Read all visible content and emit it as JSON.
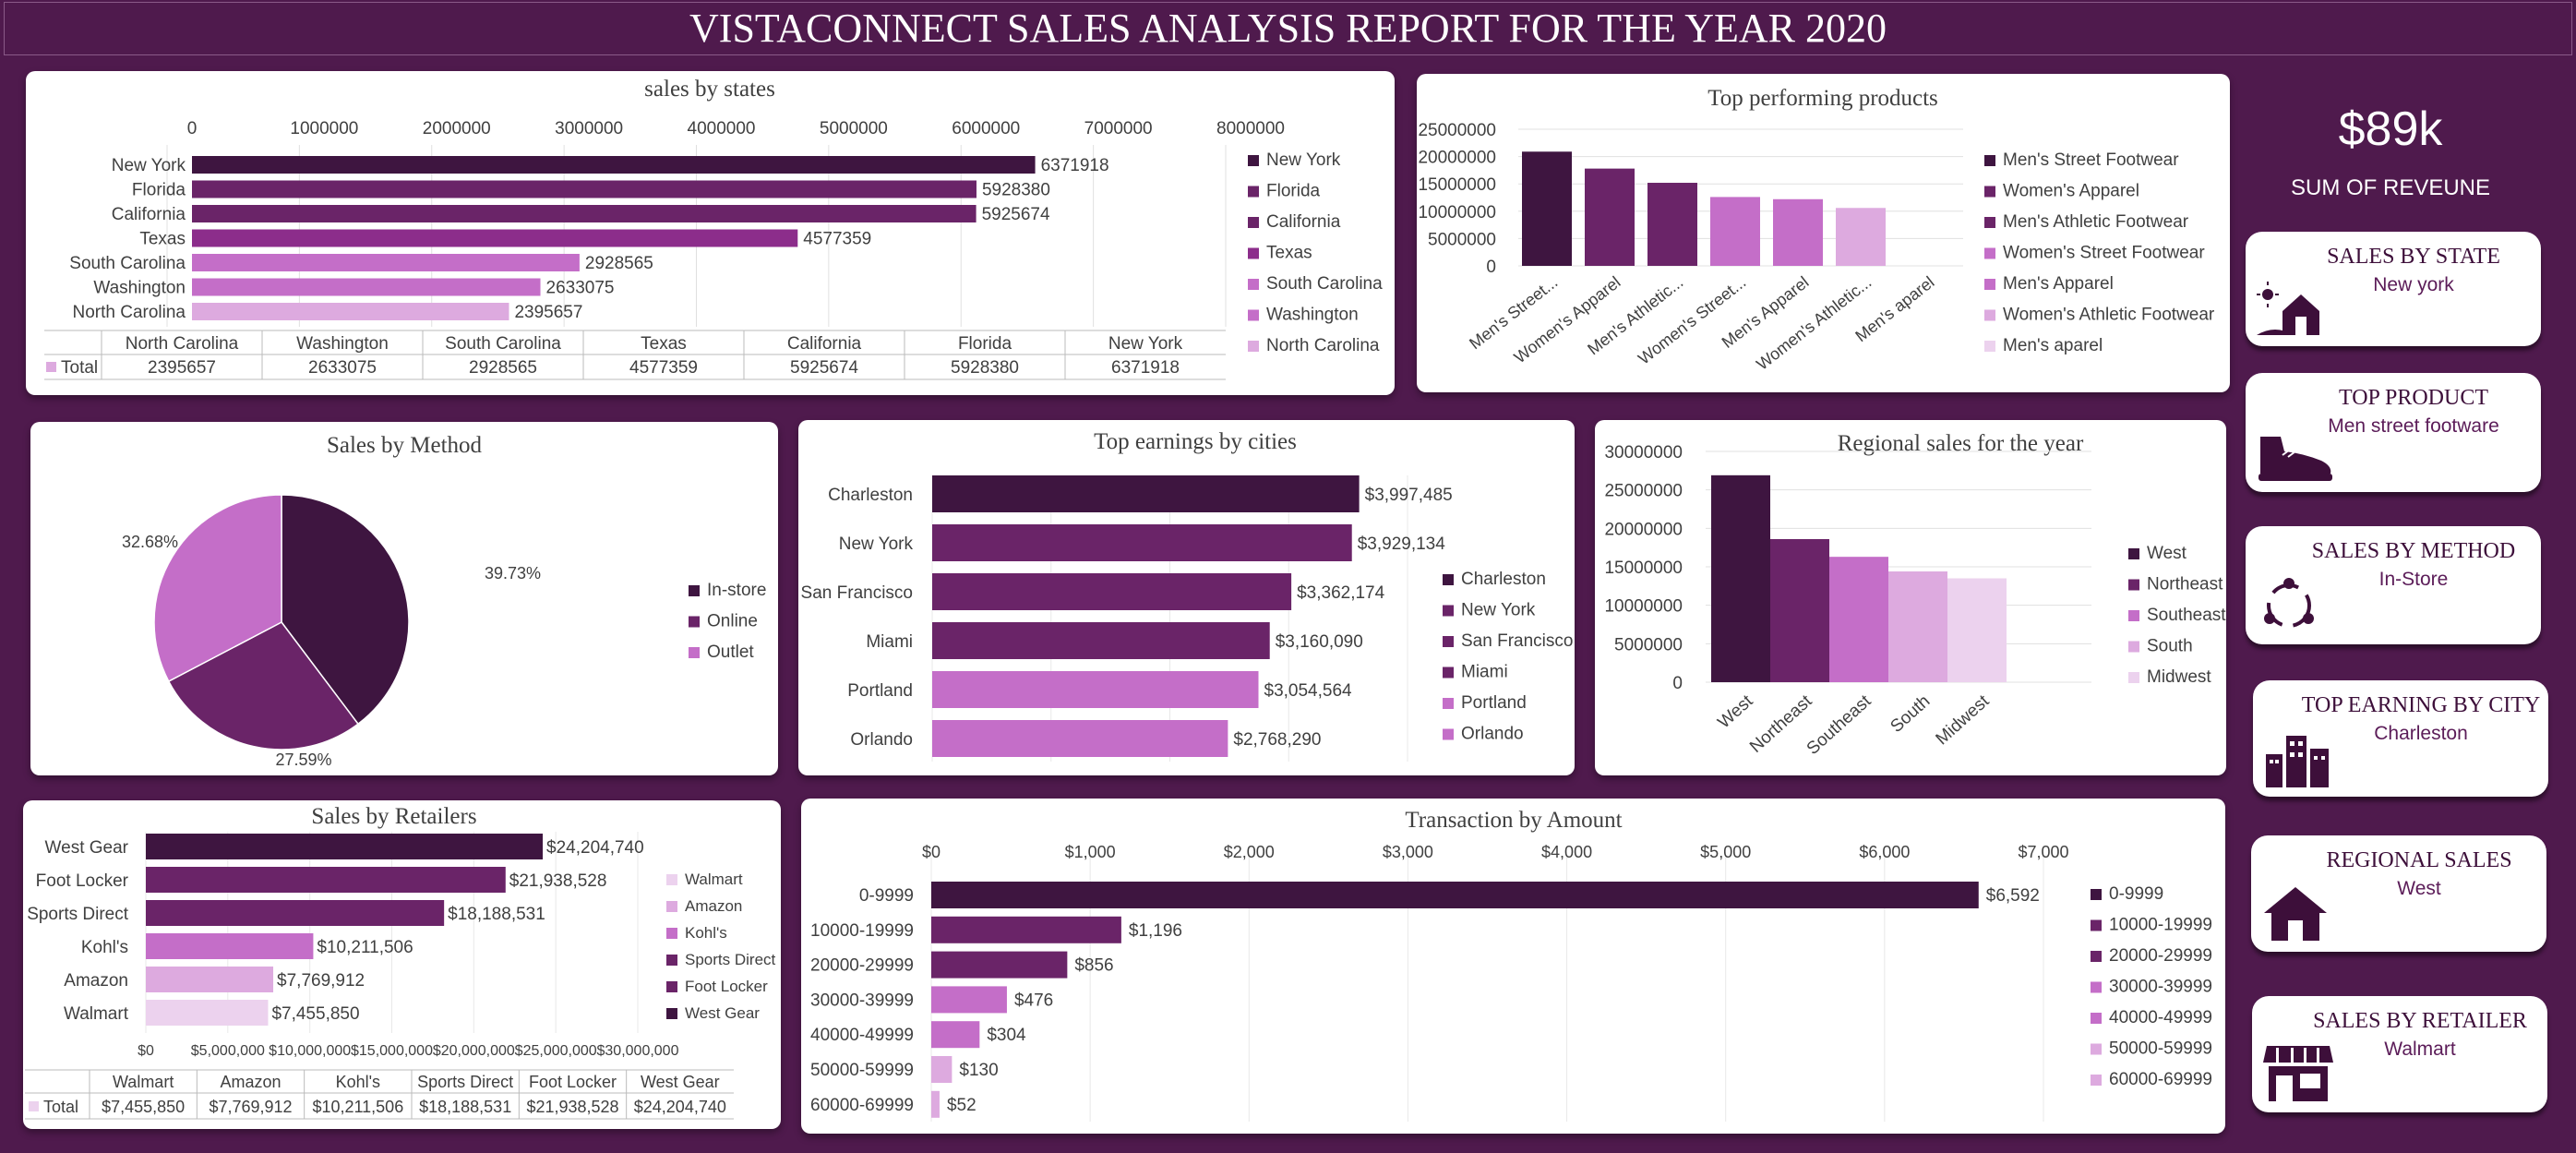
{
  "header": {
    "title": "VISTACONNECT SALES ANALYSIS REPORT FOR THE YEAR 2020"
  },
  "colors": {
    "background": "#4f1a4d",
    "c1": "#3e1540",
    "c2": "#6a2468",
    "c3": "#8c2d8b",
    "c4": "#c46ec8",
    "c5": "#ddaadf",
    "c6": "#ecd2ee"
  },
  "kpi": {
    "value": "$89k",
    "label": "SUM OF REVEUNE"
  },
  "cards": [
    {
      "title": "SALES BY STATE",
      "value": "New york",
      "icon": "barn-sun-icon"
    },
    {
      "title": "TOP PRODUCT",
      "value": "Men street footware",
      "icon": "sneaker-icon"
    },
    {
      "title": "SALES BY METHOD",
      "value": "In-Store",
      "icon": "cycle-arrows-icon"
    },
    {
      "title": "TOP EARNING BY CITY",
      "value": "Charleston",
      "icon": "city-buildings-icon"
    },
    {
      "title": "REGIONAL SALES",
      "value": "West",
      "icon": "house-icon"
    },
    {
      "title": "SALES BY RETAILER",
      "value": "Walmart",
      "icon": "store-icon"
    }
  ],
  "chart_data": [
    {
      "id": "states",
      "type": "bar",
      "orientation": "horizontal",
      "title": "sales by states",
      "categories": [
        "New York",
        "Florida",
        "California",
        "Texas",
        "South Carolina",
        "Washington",
        "North Carolina"
      ],
      "values": [
        6371918,
        5928380,
        5925674,
        4577359,
        2928565,
        2633075,
        2395657
      ],
      "value_labels": [
        "6371918",
        "5928380",
        "5925674",
        "4577359",
        "2928565",
        "2633075",
        "2395657"
      ],
      "xlim": [
        0,
        8000000
      ],
      "ticks": [
        "0",
        "1000000",
        "2000000",
        "3000000",
        "4000000",
        "5000000",
        "6000000",
        "7000000",
        "8000000"
      ],
      "legend": [
        "New York",
        "Florida",
        "California",
        "Texas",
        "South Carolina",
        "Washington",
        "North Carolina"
      ],
      "table": {
        "row_label": "Total",
        "headers": [
          "North Carolina",
          "Washington",
          "South Carolina",
          "Texas",
          "California",
          "Florida",
          "New York"
        ],
        "values": [
          "2395657",
          "2633075",
          "2928565",
          "4577359",
          "5925674",
          "5928380",
          "6371918"
        ]
      }
    },
    {
      "id": "products",
      "type": "bar",
      "orientation": "vertical",
      "title": "Top performing products",
      "categories": [
        "Men's Street...",
        "Women's Apparel",
        "Men's Athletic...",
        "Women's Street...",
        "Men's Apparel",
        "Women's Athletic...",
        "Men's aparel"
      ],
      "values": [
        20900000,
        17800000,
        15200000,
        12600000,
        12200000,
        10600000,
        0
      ],
      "ylim": [
        0,
        25000000
      ],
      "ticks": [
        "0",
        "5000000",
        "10000000",
        "15000000",
        "20000000",
        "25000000"
      ],
      "legend": [
        "Men's Street Footwear",
        "Women's Apparel",
        "Men's Athletic Footwear",
        "Women's Street Footwear",
        "Men's Apparel",
        "Women's Athletic Footwear",
        "Men's aparel"
      ]
    },
    {
      "id": "method",
      "type": "pie",
      "title": "Sales by Method",
      "categories": [
        "In-store",
        "Online",
        "Outlet"
      ],
      "values": [
        39.73,
        27.59,
        32.68
      ],
      "value_labels": [
        "39.73%",
        "27.59%",
        "32.68%"
      ],
      "legend": [
        "In-store",
        "Online",
        "Outlet"
      ]
    },
    {
      "id": "cities",
      "type": "bar",
      "orientation": "horizontal",
      "title": "Top earnings by cities",
      "categories": [
        "Charleston",
        "New York",
        "San Francisco",
        "Miami",
        "Portland",
        "Orlando"
      ],
      "values": [
        3997485,
        3929134,
        3362174,
        3160090,
        3054564,
        2768290
      ],
      "value_labels": [
        "$3,997,485",
        "$3,929,134",
        "$3,362,174",
        "$3,160,090",
        "$3,054,564",
        "$2,768,290"
      ],
      "xlim": [
        0,
        4450000
      ],
      "legend": [
        "Charleston",
        "New York",
        "San Francisco",
        "Miami",
        "Portland",
        "Orlando"
      ]
    },
    {
      "id": "regions",
      "type": "bar",
      "orientation": "vertical",
      "title": "Regional sales for the year",
      "categories": [
        "West",
        "Northeast",
        "Southeast",
        "South",
        "Midwest"
      ],
      "values": [
        26900000,
        18600000,
        16300000,
        14400000,
        13500000
      ],
      "ylim": [
        0,
        30000000
      ],
      "ticks": [
        "0",
        "5000000",
        "10000000",
        "15000000",
        "20000000",
        "25000000",
        "30000000"
      ],
      "legend": [
        "West",
        "Northeast",
        "Southeast",
        "South",
        "Midwest"
      ]
    },
    {
      "id": "retailers",
      "type": "bar",
      "orientation": "horizontal",
      "title": "Sales by Retailers",
      "categories": [
        "West Gear",
        "Foot Locker",
        "Sports Direct",
        "Kohl's",
        "Amazon",
        "Walmart"
      ],
      "values": [
        24204740,
        21938528,
        18188531,
        10211506,
        7769912,
        7455850
      ],
      "value_labels": [
        "$24,204,740",
        "$21,938,528",
        "$18,188,531",
        "$10,211,506",
        "$7,769,912",
        "$7,455,850"
      ],
      "xlim": [
        0,
        30000000
      ],
      "ticks": [
        "$0",
        "$5,000,000",
        "$10,000,000",
        "$15,000,000",
        "$20,000,000",
        "$25,000,000",
        "$30,000,000"
      ],
      "legend": [
        "Walmart",
        "Amazon",
        "Kohl's",
        "Sports Direct",
        "Foot Locker",
        "West Gear"
      ],
      "table": {
        "row_label": "Total",
        "headers": [
          "Walmart",
          "Amazon",
          "Kohl's",
          "Sports Direct",
          "Foot Locker",
          "West Gear"
        ],
        "values": [
          "$7,455,850",
          "$7,769,912",
          "$10,211,506",
          "$18,188,531",
          "$21,938,528",
          "$24,204,740"
        ]
      }
    },
    {
      "id": "amount",
      "type": "bar",
      "orientation": "horizontal",
      "title": "Transaction by Amount",
      "categories": [
        "0-9999",
        "10000-19999",
        "20000-29999",
        "30000-39999",
        "40000-49999",
        "50000-59999",
        "60000-69999"
      ],
      "values": [
        6592,
        1196,
        856,
        476,
        304,
        130,
        52
      ],
      "value_labels": [
        "$6,592",
        "$1,196",
        "$856",
        "$476",
        "$304",
        "$130",
        "$52"
      ],
      "xlim": [
        0,
        7000
      ],
      "ticks": [
        "$0",
        "$1,000",
        "$2,000",
        "$3,000",
        "$4,000",
        "$5,000",
        "$6,000",
        "$7,000"
      ],
      "legend": [
        "0-9999",
        "10000-19999",
        "20000-29999",
        "30000-39999",
        "40000-49999",
        "50000-59999",
        "60000-69999"
      ]
    }
  ]
}
